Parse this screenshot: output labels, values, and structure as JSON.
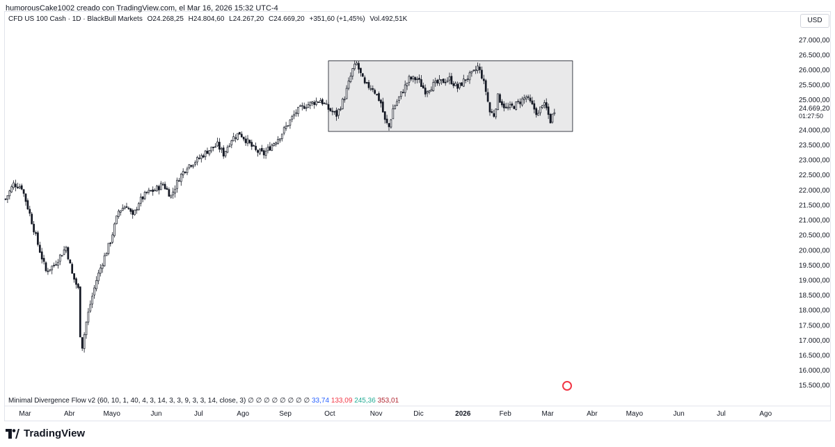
{
  "header": {
    "caption": "humorousCake1002 creado con TradingView.com, el Mar 16, 2026 15:32 UTC-4"
  },
  "legend": {
    "symbol": "CFD US 100 Cash · 1D · BlackBull Markets",
    "open": "O24.268,25",
    "high": "H24.804,60",
    "low": "L24.267,20",
    "close": "C24.669,20",
    "change": "+351,60 (+1,45%)",
    "volume": "Vol.492,51K"
  },
  "currency_button": "USD",
  "indicator": {
    "name": "Minimal Divergence Flow v2 (60, 10, 1, 40, 4, 3, 14, 3, 3, 9, 3, 3, 14, close, 3)",
    "placeholders": "∅ ∅ ∅ ∅ ∅ ∅ ∅ ∅",
    "v1": "33,74",
    "v2": "133,09",
    "v3": "245,36",
    "v4": "353,01"
  },
  "price_label": {
    "price": "24.669,20",
    "countdown": "01:27:50"
  },
  "brand": "TradingView",
  "colors": {
    "candle": "#131722",
    "range_box_fill": "#e9e9ea",
    "range_box_stroke": "#131722"
  },
  "icons": {
    "logo": "tradingview-logo-icon",
    "event": "us-flag-event-icon"
  },
  "chart_data": {
    "type": "candlestick",
    "symbol": "CFD US 100 Cash",
    "timeframe": "1D",
    "ylim": [
      15250,
      27400
    ],
    "y_ticks": [
      "27.000,00",
      "26.500,00",
      "26.000,00",
      "25.500,00",
      "25.000,00",
      "24.000,00",
      "23.500,00",
      "23.000,00",
      "22.500,00",
      "22.000,00",
      "21.500,00",
      "21.000,00",
      "20.500,00",
      "20.000,00",
      "19.500,00",
      "19.000,00",
      "18.500,00",
      "18.000,00",
      "17.500,00",
      "17.000,00",
      "16.500,00",
      "16.000,00",
      "15.500,00"
    ],
    "y_tick_values": [
      27000,
      26500,
      26000,
      25500,
      25000,
      24000,
      23500,
      23000,
      22500,
      22000,
      21500,
      21000,
      20500,
      20000,
      19500,
      19000,
      18500,
      18000,
      17500,
      17000,
      16500,
      16000,
      15500
    ],
    "x_ticks": [
      "Mar",
      "Abr",
      "Mayo",
      "Jun",
      "Jul",
      "Ago",
      "Sep",
      "Oct",
      "Nov",
      "Dic",
      "2026",
      "Feb",
      "Mar",
      "Abr",
      "Mayo",
      "Jun",
      "Jul",
      "Ago"
    ],
    "x_tick_index": [
      0,
      22,
      43,
      65,
      86,
      108,
      129,
      151,
      174,
      195,
      217,
      238,
      259,
      281,
      302,
      324,
      345,
      367
    ],
    "range_box": {
      "start_index": 160,
      "end_index": 281,
      "top": 26300,
      "bottom": 23950
    },
    "anchors": [
      [
        0,
        21700
      ],
      [
        4,
        22200
      ],
      [
        8,
        22100
      ],
      [
        12,
        21200
      ],
      [
        16,
        20200
      ],
      [
        20,
        19300
      ],
      [
        24,
        19500
      ],
      [
        27,
        19800
      ],
      [
        30,
        20100
      ],
      [
        33,
        19200
      ],
      [
        36,
        18700
      ],
      [
        37,
        17200
      ],
      [
        38,
        16800
      ],
      [
        40,
        17600
      ],
      [
        42,
        18200
      ],
      [
        45,
        19000
      ],
      [
        48,
        19600
      ],
      [
        52,
        20300
      ],
      [
        56,
        21300
      ],
      [
        60,
        21500
      ],
      [
        63,
        21100
      ],
      [
        66,
        21600
      ],
      [
        70,
        21900
      ],
      [
        74,
        22000
      ],
      [
        78,
        22200
      ],
      [
        82,
        21800
      ],
      [
        86,
        22400
      ],
      [
        90,
        22800
      ],
      [
        95,
        23000
      ],
      [
        100,
        23300
      ],
      [
        105,
        23500
      ],
      [
        108,
        23200
      ],
      [
        112,
        23700
      ],
      [
        116,
        23900
      ],
      [
        120,
        23600
      ],
      [
        124,
        23300
      ],
      [
        128,
        23200
      ],
      [
        132,
        23500
      ],
      [
        136,
        23800
      ],
      [
        140,
        24200
      ],
      [
        144,
        24600
      ],
      [
        148,
        24800
      ],
      [
        152,
        24900
      ],
      [
        156,
        25000
      ],
      [
        160,
        24700
      ],
      [
        164,
        24500
      ],
      [
        168,
        25100
      ],
      [
        172,
        26000
      ],
      [
        174,
        26200
      ],
      [
        178,
        25500
      ],
      [
        182,
        25400
      ],
      [
        186,
        24900
      ],
      [
        188,
        24300
      ],
      [
        190,
        24100
      ],
      [
        192,
        24700
      ],
      [
        196,
        25200
      ],
      [
        200,
        25700
      ],
      [
        204,
        25700
      ],
      [
        208,
        25300
      ],
      [
        212,
        25500
      ],
      [
        216,
        25600
      ],
      [
        220,
        25700
      ],
      [
        224,
        25400
      ],
      [
        228,
        25700
      ],
      [
        232,
        25900
      ],
      [
        234,
        26100
      ],
      [
        236,
        25800
      ],
      [
        238,
        25300
      ],
      [
        240,
        24600
      ],
      [
        242,
        24500
      ],
      [
        244,
        25100
      ],
      [
        248,
        24700
      ],
      [
        252,
        24800
      ],
      [
        256,
        25000
      ],
      [
        258,
        25100
      ],
      [
        260,
        24900
      ],
      [
        262,
        24700
      ],
      [
        264,
        24500
      ],
      [
        266,
        24900
      ],
      [
        268,
        24700
      ],
      [
        270,
        24300
      ],
      [
        272,
        24669
      ]
    ]
  }
}
